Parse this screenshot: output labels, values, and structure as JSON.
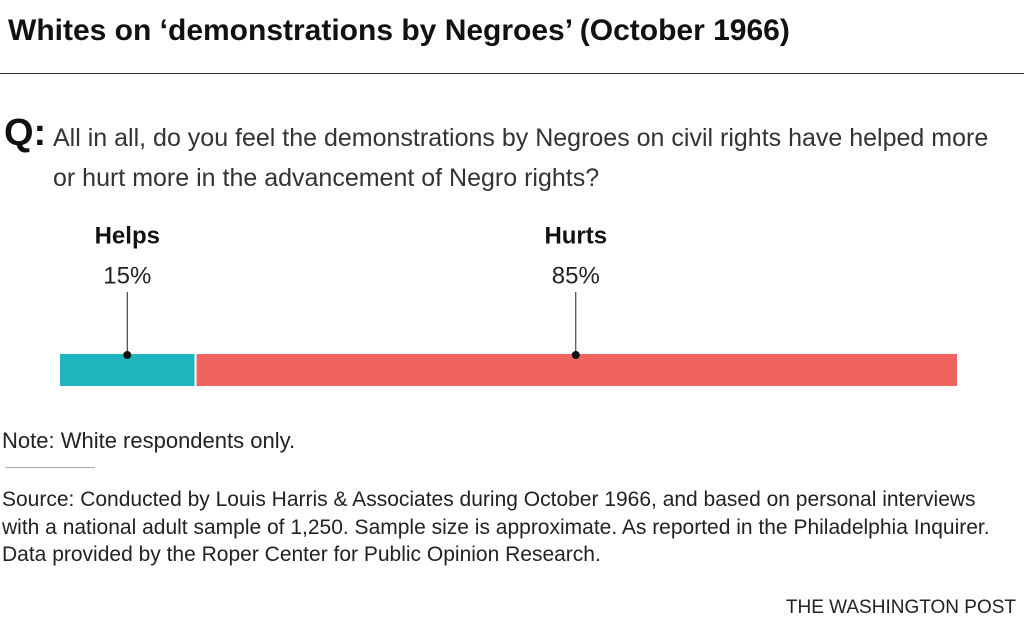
{
  "chart_data": {
    "type": "stacked-bar",
    "title": "Whites on ‘demonstrations by Negroes’ (October 1966)",
    "question_prefix": "Q:",
    "question": "All in all, do you feel the demonstrations by Negroes on civil rights have helped more or hurt more in the advancement of Negro rights?",
    "categories": [
      "Helps",
      "Hurts"
    ],
    "values": [
      15,
      85
    ],
    "value_labels": [
      "15%",
      "85%"
    ],
    "colors": [
      "#1fb5bf",
      "#f0645f"
    ],
    "xlim": [
      0,
      100
    ],
    "note": "Note: White respondents only.",
    "source": "Source: Conducted by Louis Harris & Associates during October 1966, and based on personal interviews with a national adult sample of 1,250. Sample size is approximate. As reported in the Philadelphia Inquirer. Data provided by the Roper Center for Public Opinion Research.",
    "credit": "THE WASHINGTON POST"
  }
}
